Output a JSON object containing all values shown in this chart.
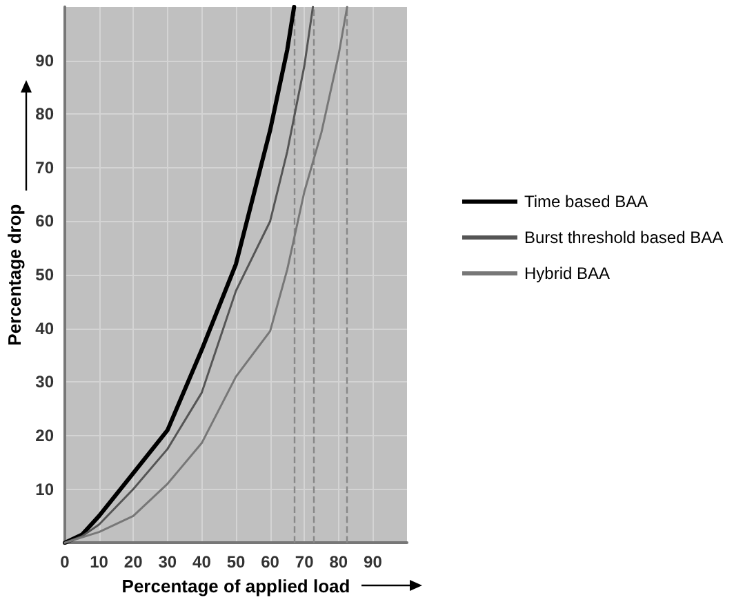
{
  "chart_data": {
    "type": "line",
    "xlabel": "Percentage of applied load",
    "ylabel": "Percentage drop",
    "xlim": [
      0,
      100
    ],
    "xticks": [
      0,
      10,
      20,
      30,
      40,
      50,
      60,
      70,
      80,
      90
    ],
    "ylim": [
      0,
      100
    ],
    "yticks": [
      10,
      20,
      30,
      40,
      50,
      60,
      70,
      80,
      90
    ],
    "grid": true,
    "legend": "right",
    "marker": "none",
    "line_style": "solid",
    "series": [
      {
        "name": "Time based BAA",
        "color": "#000000",
        "x": [
          0,
          5,
          10,
          20,
          30,
          40,
          50,
          60,
          65,
          67
        ],
        "values": [
          0,
          1.5,
          5,
          13,
          21,
          36,
          52,
          77,
          92,
          100
        ]
      },
      {
        "name": "Burst threshold based BAA",
        "color": "#555555",
        "x": [
          0,
          5,
          10,
          20,
          30,
          40,
          50,
          60,
          65,
          70,
          72.5
        ],
        "values": [
          0,
          1.2,
          3.4,
          10,
          17.5,
          28,
          47,
          60,
          73,
          89,
          100
        ]
      },
      {
        "name": "Hybrid BAA",
        "color": "#777777",
        "x": [
          0,
          5,
          10,
          20,
          30,
          40,
          50,
          60,
          65,
          70,
          75,
          80,
          82.5
        ],
        "values": [
          0,
          1,
          2,
          5,
          11,
          18.6,
          31,
          39.5,
          51,
          65.5,
          76.6,
          91,
          100
        ]
      }
    ],
    "ref_lines": [
      {
        "axis": "x",
        "value": 67,
        "color": "#888888",
        "line_style": "dashed"
      },
      {
        "axis": "x",
        "value": 72.5,
        "color": "#888888",
        "line_style": "dashed"
      },
      {
        "axis": "x",
        "value": 82.5,
        "color": "#888888",
        "line_style": "dashed"
      }
    ]
  }
}
